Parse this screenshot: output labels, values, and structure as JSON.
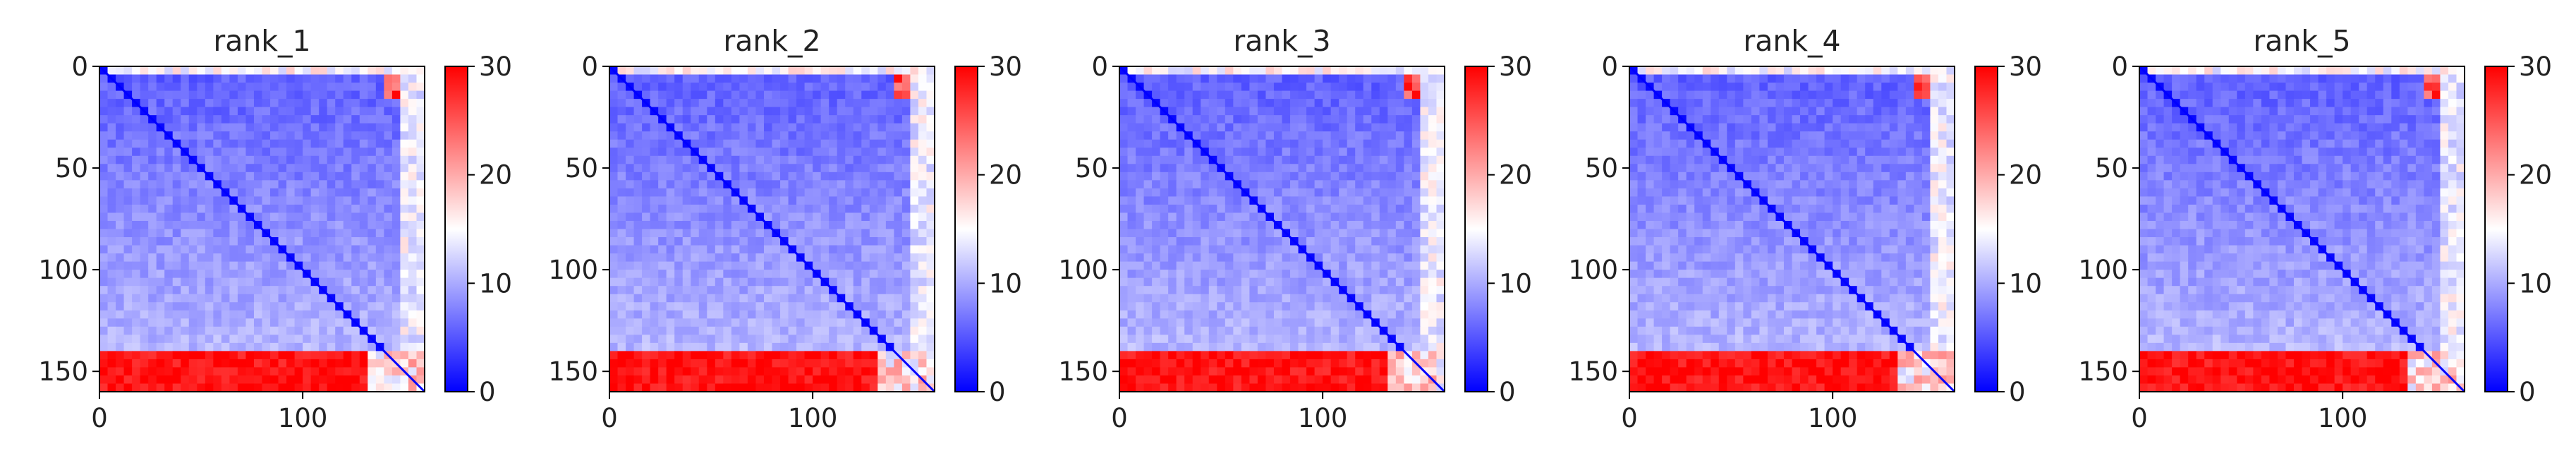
{
  "chart_data": [
    {
      "type": "heatmap",
      "title": "rank_1",
      "x_ticks": [
        "0",
        "100"
      ],
      "y_ticks": [
        "0",
        "50",
        "100",
        "150"
      ],
      "x_range": [
        0,
        160
      ],
      "y_range": [
        0,
        160
      ],
      "colorbar": {
        "min": 0,
        "max": 30,
        "ticks": [
          "0",
          "10",
          "20",
          "30"
        ],
        "colormap": "bwr"
      },
      "matrix_size": 160,
      "red_band_rows": [
        142,
        160
      ]
    },
    {
      "type": "heatmap",
      "title": "rank_2",
      "x_ticks": [
        "0",
        "100"
      ],
      "y_ticks": [
        "0",
        "50",
        "100",
        "150"
      ],
      "x_range": [
        0,
        160
      ],
      "y_range": [
        0,
        160
      ],
      "colorbar": {
        "min": 0,
        "max": 30,
        "ticks": [
          "0",
          "10",
          "20",
          "30"
        ],
        "colormap": "bwr"
      },
      "matrix_size": 160,
      "red_band_rows": [
        142,
        160
      ]
    },
    {
      "type": "heatmap",
      "title": "rank_3",
      "x_ticks": [
        "0",
        "100"
      ],
      "y_ticks": [
        "0",
        "50",
        "100",
        "150"
      ],
      "x_range": [
        0,
        160
      ],
      "y_range": [
        0,
        160
      ],
      "colorbar": {
        "min": 0,
        "max": 30,
        "ticks": [
          "0",
          "10",
          "20",
          "30"
        ],
        "colormap": "bwr"
      },
      "matrix_size": 160,
      "red_band_rows": [
        142,
        160
      ]
    },
    {
      "type": "heatmap",
      "title": "rank_4",
      "x_ticks": [
        "0",
        "100"
      ],
      "y_ticks": [
        "0",
        "50",
        "100",
        "150"
      ],
      "x_range": [
        0,
        160
      ],
      "y_range": [
        0,
        160
      ],
      "colorbar": {
        "min": 0,
        "max": 30,
        "ticks": [
          "0",
          "10",
          "20",
          "30"
        ],
        "colormap": "bwr"
      },
      "matrix_size": 160,
      "red_band_rows": [
        142,
        160
      ]
    },
    {
      "type": "heatmap",
      "title": "rank_5",
      "x_ticks": [
        "0",
        "100"
      ],
      "y_ticks": [
        "0",
        "50",
        "100",
        "150"
      ],
      "x_range": [
        0,
        160
      ],
      "y_range": [
        0,
        160
      ],
      "colorbar": {
        "min": 0,
        "max": 30,
        "ticks": [
          "0",
          "10",
          "20",
          "30"
        ],
        "colormap": "bwr"
      },
      "matrix_size": 160,
      "red_band_rows": [
        142,
        160
      ]
    }
  ]
}
